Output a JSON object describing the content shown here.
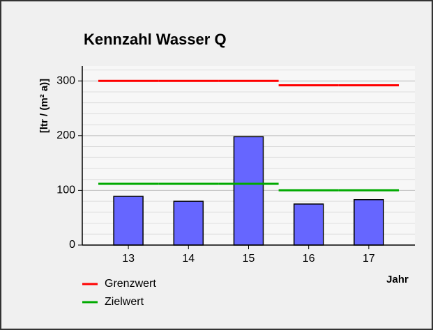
{
  "chart_data": {
    "type": "bar",
    "title": "Kennzahl Wasser Q",
    "y_label": "[ltr / (m² a)]",
    "x_label": "Jahr",
    "categories": [
      "13",
      "14",
      "15",
      "16",
      "17"
    ],
    "values": [
      89,
      80,
      198,
      75,
      83
    ],
    "color": "#6666ff",
    "lines": [
      {
        "name": "Grenzwert",
        "color": "#ff0000",
        "values": [
          300,
          300,
          300,
          292,
          292
        ]
      },
      {
        "name": "Zielwert",
        "color": "#00aa00",
        "values": [
          112,
          112,
          112,
          100,
          100
        ]
      }
    ],
    "ylim": [
      0,
      327
    ],
    "yticks": [
      0,
      100,
      200,
      300
    ],
    "minor_yticks": [
      20,
      40,
      60,
      80,
      120,
      140,
      160,
      180,
      220,
      240,
      260,
      280,
      320
    ],
    "grid": true
  }
}
